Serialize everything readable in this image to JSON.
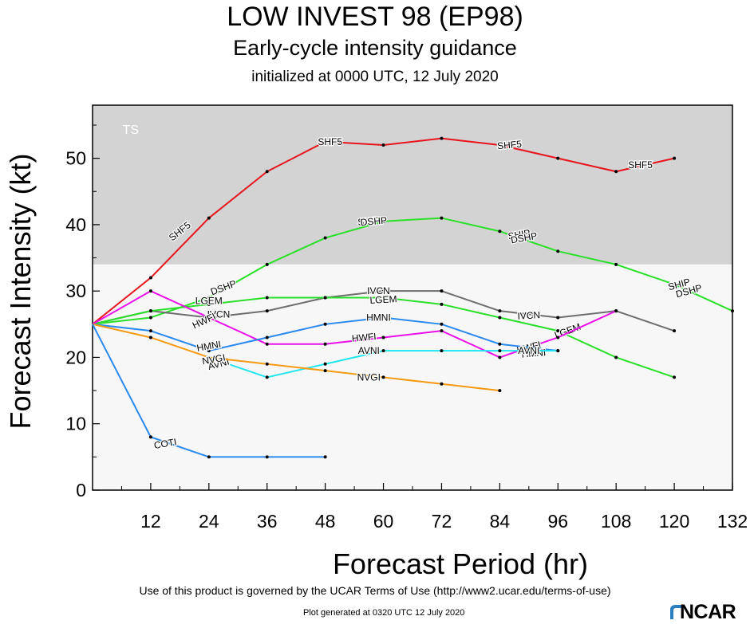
{
  "header": {
    "title": "LOW INVEST 98 (EP98)",
    "subtitle": "Early-cycle intensity guidance",
    "init": "initialized at 0000 UTC, 12 July 2020"
  },
  "footer": {
    "terms": "Use of this product is governed by the UCAR Terms of Use (http://www2.ucar.edu/terms-of-use)",
    "generated": "Plot generated at 0320 UTC   12 July 2020",
    "logo": "NCAR"
  },
  "chart_data": {
    "type": "line",
    "xlabel": "Forecast Period (hr)",
    "ylabel": "Forecast Intensity (kt)",
    "xlim": [
      0,
      132
    ],
    "ylim": [
      0,
      58
    ],
    "xticks": [
      12,
      24,
      36,
      48,
      60,
      72,
      84,
      96,
      108,
      120,
      132
    ],
    "yticks": [
      0,
      10,
      20,
      30,
      40,
      50
    ],
    "bands": [
      {
        "label": "TS",
        "from": 34,
        "to": 58,
        "color": "#d3d3d3"
      },
      {
        "label": "",
        "from": 0,
        "to": 34,
        "color": "#f7f7f7"
      }
    ],
    "colors": {
      "red": "#e8141c",
      "green": "#28e028",
      "gray": "#6e6e6e",
      "magenta": "#ea10ea",
      "blue": "#2a8af0",
      "cyan": "#1fe6ef",
      "orange": "#f59a12"
    },
    "series": [
      {
        "name": "SHF5",
        "color": "#e8141c",
        "x": [
          0,
          12,
          24,
          36,
          48,
          60,
          72,
          84,
          96,
          108,
          120
        ],
        "y": [
          25,
          32,
          41,
          48,
          52.5,
          52,
          53,
          52,
          50,
          48,
          50
        ],
        "labels": [
          {
            "text": "SHF5",
            "x": 18,
            "y": 39,
            "rot": -38
          },
          {
            "text": "SHF5",
            "x": 49,
            "y": 52.5,
            "rot": 0
          },
          {
            "text": "SHF5",
            "x": 86,
            "y": 52,
            "rot": -5
          },
          {
            "text": "SHF5",
            "x": 113,
            "y": 49,
            "rot": 0
          }
        ]
      },
      {
        "name": "DSHP",
        "color": "#28e028",
        "x": [
          0,
          12,
          24,
          36,
          48,
          60,
          72,
          84,
          96,
          108,
          120,
          132
        ],
        "y": [
          25,
          26,
          29,
          34,
          38,
          40.5,
          41,
          39,
          36,
          34,
          31,
          27
        ],
        "labels": [
          {
            "text": "DSHP",
            "x": 27,
            "y": 30.5,
            "rot": -20
          },
          {
            "text": "SHIP",
            "x": 57,
            "y": 40.5,
            "rot": -5
          },
          {
            "text": "DSHP",
            "x": 58,
            "y": 40.5,
            "rot": -5
          },
          {
            "text": "SHIP",
            "x": 88,
            "y": 38.5,
            "rot": -10
          },
          {
            "text": "DSHP",
            "x": 89,
            "y": 38,
            "rot": -10
          },
          {
            "text": "SHIP",
            "x": 121,
            "y": 31,
            "rot": -15
          },
          {
            "text": "DSHP",
            "x": 123,
            "y": 30,
            "rot": -15
          }
        ]
      },
      {
        "name": "IVCN",
        "color": "#6e6e6e",
        "x": [
          0,
          12,
          24,
          36,
          48,
          60,
          72,
          84,
          96,
          108,
          120
        ],
        "y": [
          25,
          27,
          26,
          27,
          29,
          30,
          30,
          27,
          26,
          27,
          24
        ],
        "labels": [
          {
            "text": "IVCN",
            "x": 26,
            "y": 26.5,
            "rot": 0
          },
          {
            "text": "IVCN",
            "x": 59,
            "y": 30,
            "rot": 0
          },
          {
            "text": "IVCN",
            "x": 90,
            "y": 26.3,
            "rot": -3
          }
        ]
      },
      {
        "name": "LGEM",
        "color": "#28e028",
        "x": [
          0,
          12,
          24,
          36,
          48,
          60,
          72,
          84,
          96,
          108,
          120
        ],
        "y": [
          25,
          27,
          28,
          29,
          29,
          29,
          28,
          26,
          24,
          20,
          17
        ],
        "labels": [
          {
            "text": "LGEM",
            "x": 24,
            "y": 28.5,
            "rot": 0
          },
          {
            "text": "LGEM",
            "x": 60,
            "y": 28.7,
            "rot": -3
          },
          {
            "text": "LGEM",
            "x": 98,
            "y": 24,
            "rot": -20
          }
        ]
      },
      {
        "name": "HWFI",
        "color": "#ea10ea",
        "x": [
          0,
          12,
          24,
          36,
          48,
          60,
          72,
          84,
          96,
          108
        ],
        "y": [
          25,
          30,
          26,
          22,
          22,
          23,
          24,
          20,
          23,
          27
        ],
        "labels": [
          {
            "text": "HWFI",
            "x": 23,
            "y": 25.5,
            "rot": -25
          },
          {
            "text": "HWFI",
            "x": 56,
            "y": 23,
            "rot": -5
          },
          {
            "text": "HWFI",
            "x": 90,
            "y": 21.5,
            "rot": -15
          }
        ]
      },
      {
        "name": "HMNI",
        "color": "#2a8af0",
        "x": [
          0,
          12,
          24,
          36,
          48,
          60,
          72,
          84,
          96
        ],
        "y": [
          25,
          24,
          21,
          23,
          25,
          26,
          25,
          22,
          21
        ],
        "labels": [
          {
            "text": "HMNI",
            "x": 24,
            "y": 21.7,
            "rot": -10
          },
          {
            "text": "HMNI",
            "x": 59,
            "y": 26,
            "rot": 0
          },
          {
            "text": "HMNI",
            "x": 91,
            "y": 20.6,
            "rot": -5
          }
        ]
      },
      {
        "name": "AVNI",
        "color": "#1fe6ef",
        "x": [
          24,
          36,
          48,
          60,
          72,
          84,
          96
        ],
        "y": [
          20,
          17,
          19,
          21,
          21,
          21,
          21
        ],
        "labels": [
          {
            "text": "AVNI",
            "x": 26,
            "y": 19,
            "rot": -15
          },
          {
            "text": "AVNI",
            "x": 57,
            "y": 21,
            "rot": 0
          },
          {
            "text": "AVNI",
            "x": 90,
            "y": 21,
            "rot": 0
          }
        ]
      },
      {
        "name": "NVGI",
        "color": "#f59a12",
        "x": [
          0,
          12,
          24,
          36,
          48,
          60,
          72,
          84
        ],
        "y": [
          25,
          23,
          20,
          19,
          18,
          17,
          16,
          15
        ],
        "labels": [
          {
            "text": "NVGI",
            "x": 25,
            "y": 19.7,
            "rot": -10
          },
          {
            "text": "NVGI",
            "x": 57,
            "y": 17,
            "rot": 0
          }
        ]
      },
      {
        "name": "COTI",
        "color": "#2a8af0",
        "x": [
          0,
          12,
          24,
          36,
          48
        ],
        "y": [
          25,
          8,
          5,
          5,
          5
        ],
        "labels": [
          {
            "text": "COTI",
            "x": 15,
            "y": 7,
            "rot": -10
          }
        ]
      }
    ]
  }
}
